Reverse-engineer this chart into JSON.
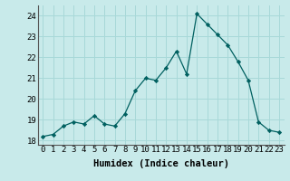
{
  "x": [
    0,
    1,
    2,
    3,
    4,
    5,
    6,
    7,
    8,
    9,
    10,
    11,
    12,
    13,
    14,
    15,
    16,
    17,
    18,
    19,
    20,
    21,
    22,
    23
  ],
  "y": [
    18.2,
    18.3,
    18.7,
    18.9,
    18.8,
    19.2,
    18.8,
    18.7,
    19.3,
    20.4,
    21.0,
    20.9,
    21.5,
    22.3,
    21.2,
    24.1,
    23.6,
    23.1,
    22.6,
    21.8,
    20.9,
    18.9,
    18.5,
    18.4
  ],
  "xlabel": "Humidex (Indice chaleur)",
  "ylim": [
    17.8,
    24.5
  ],
  "xlim": [
    -0.5,
    23.5
  ],
  "yticks": [
    18,
    19,
    20,
    21,
    22,
    23,
    24
  ],
  "xticks": [
    0,
    1,
    2,
    3,
    4,
    5,
    6,
    7,
    8,
    9,
    10,
    11,
    12,
    13,
    14,
    15,
    16,
    17,
    18,
    19,
    20,
    21,
    22,
    23
  ],
  "line_color": "#006060",
  "marker_color": "#006060",
  "bg_color": "#c8eaea",
  "grid_color": "#a8d8d8",
  "tick_label_fontsize": 6.5,
  "xlabel_fontsize": 7.5
}
